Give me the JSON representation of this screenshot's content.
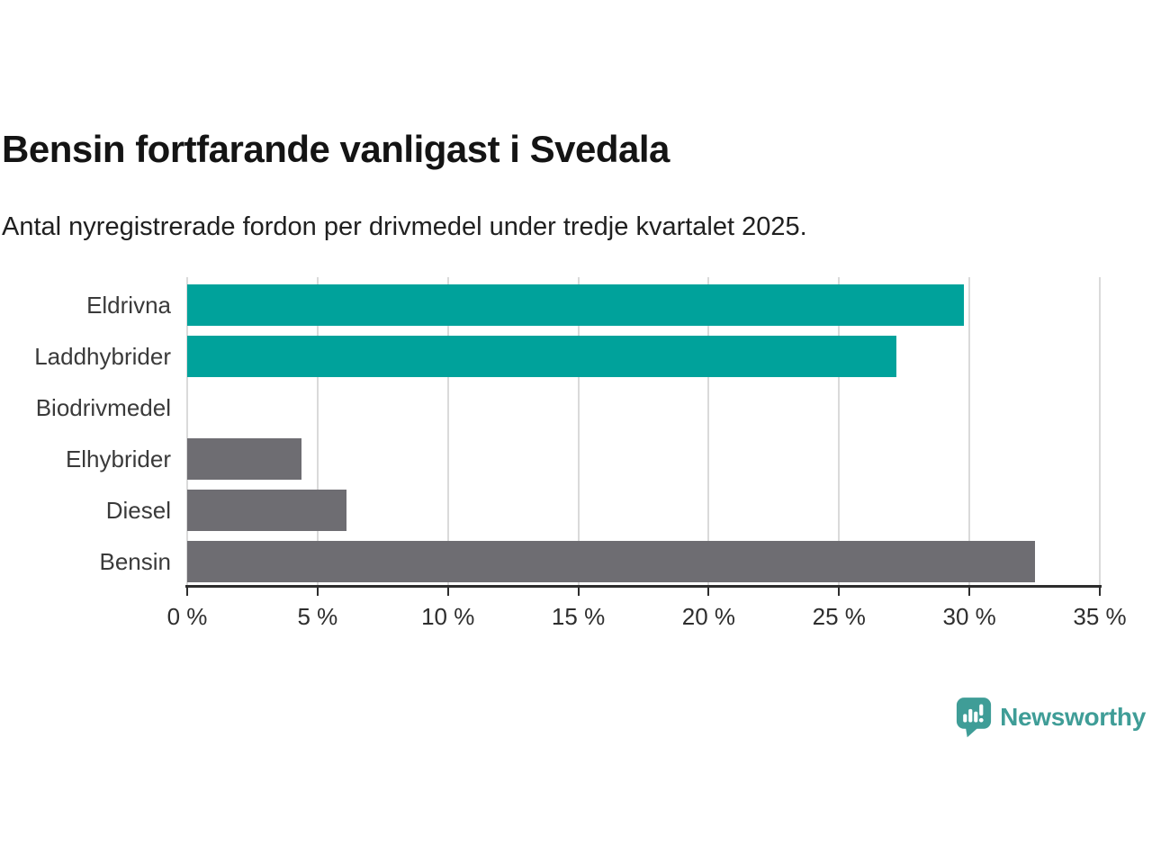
{
  "header": {
    "title": "Bensin fortfarande vanligast i Svedala",
    "subtitle": "Antal nyregistrerade fordon per drivmedel under tredje kvartalet 2025."
  },
  "chart_data": {
    "type": "bar",
    "orientation": "horizontal",
    "title": "Bensin fortfarande vanligast i Svedala",
    "subtitle": "Antal nyregistrerade fordon per drivmedel under tredje kvartalet 2025.",
    "categories": [
      "Eldrivna",
      "Laddhybrider",
      "Biodrivmedel",
      "Elhybrider",
      "Diesel",
      "Bensin"
    ],
    "values": [
      29.8,
      27.2,
      0,
      4.4,
      6.1,
      32.5
    ],
    "unit": "%",
    "bar_colors": [
      "#00a29b",
      "#00a29b",
      "#6e6d72",
      "#6e6d72",
      "#6e6d72",
      "#6e6d72"
    ],
    "xlabel": "",
    "ylabel": "",
    "xlim": [
      0,
      35
    ],
    "x_ticks": [
      0,
      5,
      10,
      15,
      20,
      25,
      30,
      35
    ],
    "x_tick_labels": [
      "0 %",
      "5 %",
      "10 %",
      "15 %",
      "20 %",
      "25 %",
      "30 %",
      "35 %"
    ],
    "grid": "vertical",
    "legend": "none"
  },
  "colors": {
    "teal": "#00a29b",
    "gray": "#6e6d72",
    "axis": "#2d2d2d",
    "gridline": "#dadada",
    "category_text": "#3a3a3a",
    "background": "#ffffff",
    "brand": "#3f9d97"
  },
  "footer": {
    "brand": "Newsworthy",
    "logo_icon": "newsworthy-speech-bubble-chart-icon"
  }
}
